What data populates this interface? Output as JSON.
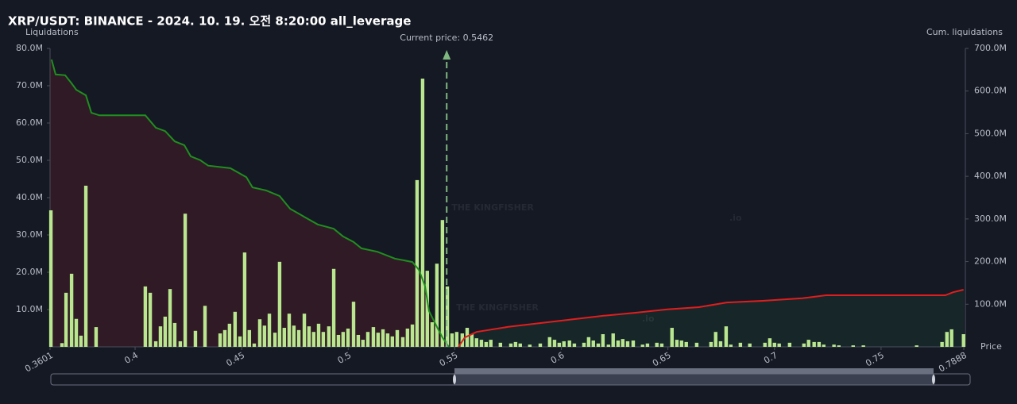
{
  "chart_data": {
    "type": "bar",
    "title": "XRP/USDT: BINANCE - 2024. 10. 19. 오전 8:20:00 all_leverage",
    "y_label": "Liquidations",
    "y2_label": "Cum. liquidations",
    "x_label": "Price",
    "annotation": "Current price: 0.5462",
    "current_price": 0.5462,
    "watermark": "THE KINGFISHER",
    "watermark_suffix": ".io",
    "color": "#b9e68f",
    "x": [
      0.3605,
      0.3657,
      0.3676,
      0.3702,
      0.3724,
      0.3746,
      0.3769,
      0.3817,
      0.4048,
      0.4071,
      0.4097,
      0.4119,
      0.4141,
      0.4164,
      0.4186,
      0.4212,
      0.4235,
      0.4283,
      0.4328,
      0.4399,
      0.4421,
      0.4443,
      0.4469,
      0.4492,
      0.4514,
      0.4536,
      0.4559,
      0.4585,
      0.4607,
      0.463,
      0.4656,
      0.4678,
      0.47,
      0.4723,
      0.4745,
      0.4768,
      0.4794,
      0.4816,
      0.4838,
      0.4861,
      0.4883,
      0.4909,
      0.4932,
      0.4954,
      0.4976,
      0.4999,
      0.5025,
      0.5047,
      0.5069,
      0.5092,
      0.5118,
      0.514,
      0.5163,
      0.5185,
      0.5207,
      0.523,
      0.5256,
      0.5278,
      0.5301,
      0.5323,
      0.5349,
      0.5371,
      0.5394,
      0.5416,
      0.5442,
      0.5465,
      0.5487,
      0.5509,
      0.5535,
      0.5558,
      0.558,
      0.5602,
      0.5625,
      0.5647,
      0.5669,
      0.5714,
      0.5763,
      0.5785,
      0.5807,
      0.5852,
      0.5901,
      0.5945,
      0.5968,
      0.599,
      0.6012,
      0.6038,
      0.6061,
      0.6106,
      0.6128,
      0.615,
      0.6173,
      0.6195,
      0.6221,
      0.6243,
      0.6266,
      0.6288,
      0.6311,
      0.6337,
      0.6381,
      0.6404,
      0.6448,
      0.6471,
      0.6519,
      0.6542,
      0.6564,
      0.6586,
      0.6635,
      0.6702,
      0.6724,
      0.6747,
      0.6773,
      0.6795,
      0.684,
      0.6884,
      0.6955,
      0.6978,
      0.7,
      0.7022,
      0.7071,
      0.7138,
      0.716,
      0.7186,
      0.7209,
      0.7231,
      0.7279,
      0.7302,
      0.7369,
      0.7417,
      0.7667,
      0.7786,
      0.7809,
      0.7831,
      0.7887
    ],
    "values": [
      36600000,
      1000000,
      14500000,
      19600000,
      7500000,
      3000000,
      43200000,
      5300000,
      16200000,
      14500000,
      1500000,
      5500000,
      8100000,
      15500000,
      6400000,
      1500000,
      35700000,
      4300000,
      11000000,
      3600000,
      4500000,
      6200000,
      9400000,
      2800000,
      25300000,
      4500000,
      900000,
      7400000,
      5700000,
      8900000,
      3800000,
      22800000,
      5100000,
      8900000,
      5700000,
      4500000,
      8900000,
      5500000,
      4000000,
      6200000,
      4000000,
      5500000,
      20900000,
      3200000,
      4000000,
      4900000,
      12100000,
      3200000,
      1900000,
      4000000,
      5300000,
      3800000,
      4700000,
      3600000,
      2800000,
      4500000,
      2600000,
      4900000,
      6000000,
      44700000,
      71900000,
      20400000,
      6600000,
      22300000,
      34000000,
      16200000,
      3600000,
      4000000,
      3600000,
      5100000,
      3400000,
      2300000,
      1900000,
      1300000,
      1900000,
      1100000,
      900000,
      1300000,
      900000,
      600000,
      900000,
      2600000,
      1900000,
      1100000,
      1500000,
      1700000,
      900000,
      1100000,
      2600000,
      1700000,
      900000,
      3400000,
      600000,
      3600000,
      1700000,
      2100000,
      1500000,
      1700000,
      600000,
      900000,
      1100000,
      900000,
      5100000,
      1900000,
      1700000,
      1300000,
      1100000,
      1300000,
      4000000,
      1500000,
      5500000,
      600000,
      1100000,
      900000,
      1100000,
      2300000,
      1100000,
      900000,
      1100000,
      900000,
      1900000,
      1300000,
      1300000,
      600000,
      600000,
      400000,
      400000,
      400000,
      400000,
      1300000,
      4000000,
      4700000,
      3400000
    ],
    "cum_lines": [
      {
        "color": "#1f8f1f",
        "fill": "rgba(120,30,40,0.28)",
        "axis": "y2",
        "x": [
          0.3608,
          0.3627,
          0.3672,
          0.3702,
          0.3724,
          0.3769,
          0.3795,
          0.3832,
          0.4048,
          0.4097,
          0.4141,
          0.4186,
          0.4231,
          0.4261,
          0.4305,
          0.4343,
          0.4447,
          0.4522,
          0.4551,
          0.4615,
          0.4678,
          0.4727,
          0.4794,
          0.4857,
          0.4932,
          0.4976,
          0.5025,
          0.5062,
          0.5137,
          0.5219,
          0.5301,
          0.5331,
          0.536,
          0.5379,
          0.5416,
          0.5442,
          0.5472
        ],
        "values": [
          674000000,
          639000000,
          637000000,
          618000000,
          603000000,
          590000000,
          549000000,
          543000000,
          543000000,
          514000000,
          506000000,
          482000000,
          473000000,
          447000000,
          438000000,
          425000000,
          419000000,
          398000000,
          374000000,
          367000000,
          354000000,
          324000000,
          305000000,
          287000000,
          277000000,
          259000000,
          246000000,
          231000000,
          223000000,
          207000000,
          199000000,
          181000000,
          143000000,
          84000000,
          47000000,
          22000000,
          0
        ]
      },
      {
        "color": "#e01e1e",
        "fill": "rgba(30,90,60,0.22)",
        "axis": "y2",
        "x": [
          0.5517,
          0.5547,
          0.5602,
          0.5751,
          0.5975,
          0.6199,
          0.6348,
          0.6497,
          0.6646,
          0.6776,
          0.6944,
          0.713,
          0.7242,
          0.7801,
          0.7838,
          0.7887
        ],
        "values": [
          0,
          22000000,
          35000000,
          47000000,
          60000000,
          73000000,
          80000000,
          88000000,
          93000000,
          104000000,
          108000000,
          114000000,
          121000000,
          121000000,
          128000000,
          134000000
        ]
      }
    ],
    "xlim": [
      0.3601,
      0.7888
    ],
    "xticks": [
      0.3601,
      0.4,
      0.45,
      0.5,
      0.55,
      0.6,
      0.65,
      0.7,
      0.75,
      0.7888
    ],
    "ylim": [
      0,
      80000000
    ],
    "yticks": [
      {
        "value": 10000000,
        "label": "10.0M"
      },
      {
        "value": 20000000,
        "label": "20.0M"
      },
      {
        "value": 30000000,
        "label": "30.0M"
      },
      {
        "value": 40000000,
        "label": "40.0M"
      },
      {
        "value": 50000000,
        "label": "50.0M"
      },
      {
        "value": 60000000,
        "label": "60.0M"
      },
      {
        "value": 70000000,
        "label": "70.0M"
      },
      {
        "value": 80000000,
        "label": "80.0M"
      }
    ],
    "y2lim": [
      0,
      700000000
    ],
    "y2ticks": [
      {
        "value": 100000000,
        "label": "100.0M"
      },
      {
        "value": 200000000,
        "label": "200.0M"
      },
      {
        "value": 300000000,
        "label": "300.0M"
      },
      {
        "value": 400000000,
        "label": "400.0M"
      },
      {
        "value": 500000000,
        "label": "500.0M"
      },
      {
        "value": 600000000,
        "label": "600.0M"
      },
      {
        "value": 700000000,
        "label": "700.0M"
      }
    ]
  }
}
